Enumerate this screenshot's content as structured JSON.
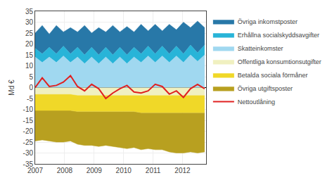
{
  "chart_data": {
    "type": "area",
    "stacked": true,
    "grid": true,
    "legend": "right",
    "ylabel": "Md €",
    "x": [
      2007.0,
      2007.239583,
      2007.479167,
      2007.71875,
      2007.958333,
      2008.197917,
      2008.4375,
      2008.677083,
      2008.916667,
      2009.15625,
      2009.395833,
      2009.635417,
      2009.875,
      2010.114583,
      2010.354167,
      2010.59375,
      2010.833333,
      2011.072917,
      2011.3125,
      2011.552083,
      2011.791667,
      2012.03125,
      2012.270833,
      2012.510417,
      2012.75
    ],
    "xlim": [
      2007.0,
      2012.8
    ],
    "xticks": [
      2007,
      2008,
      2009,
      2010,
      2011,
      2012
    ],
    "ylim": [
      -35,
      35
    ],
    "yticks": [
      -35,
      -30,
      -25,
      -20,
      -15,
      -10,
      -5,
      0,
      5,
      10,
      15,
      20,
      25,
      30,
      35
    ],
    "series": [
      {
        "name": "Skatteinkomster",
        "color": "#a0d8f0",
        "type": "area",
        "values": [
          14.0,
          11.5,
          14.0,
          11.5,
          14.5,
          11.5,
          14.0,
          11.0,
          14.0,
          11.0,
          14.0,
          11.0,
          14.0,
          11.0,
          14.0,
          11.5,
          14.5,
          11.5,
          14.5,
          11.5,
          14.5,
          11.5,
          15.0,
          12.0,
          15.0
        ]
      },
      {
        "name": "Erhållna socialskyddsavgifter",
        "color": "#28b4d8",
        "type": "area",
        "values": [
          4.0,
          4.0,
          4.5,
          4.0,
          4.5,
          4.0,
          4.5,
          4.0,
          4.5,
          4.0,
          4.5,
          4.0,
          4.5,
          4.0,
          4.5,
          4.0,
          4.5,
          4.0,
          4.5,
          4.0,
          4.5,
          4.0,
          4.5,
          4.0,
          4.5
        ]
      },
      {
        "name": "Övriga inkomstposter",
        "color": "#2878a8",
        "type": "area",
        "values": [
          7.0,
          13.0,
          6.0,
          13.0,
          6.5,
          12.0,
          7.0,
          13.5,
          6.5,
          12.5,
          7.0,
          13.5,
          7.0,
          13.0,
          7.0,
          13.5,
          7.0,
          13.5,
          7.0,
          13.5,
          7.5,
          14.5,
          8.0,
          14.5,
          8.0
        ]
      },
      {
        "name": "Offentliga konsumtionsutgifter",
        "color": "#f0f0c0",
        "type": "area",
        "values": [
          -3.0,
          -3.0,
          -3.0,
          -3.0,
          -3.0,
          -3.0,
          -3.5,
          -3.5,
          -3.5,
          -3.5,
          -3.5,
          -3.5,
          -3.5,
          -3.5,
          -3.5,
          -3.5,
          -3.5,
          -3.5,
          -3.5,
          -3.5,
          -3.5,
          -3.5,
          -3.5,
          -3.5,
          -3.5
        ]
      },
      {
        "name": "Betalda sociala förmåner",
        "color": "#f0d828",
        "type": "area",
        "values": [
          -7.5,
          -7.5,
          -7.5,
          -7.5,
          -7.5,
          -7.5,
          -7.5,
          -7.5,
          -7.5,
          -7.5,
          -7.5,
          -7.5,
          -7.5,
          -7.5,
          -7.5,
          -8.0,
          -8.0,
          -8.0,
          -8.0,
          -8.0,
          -8.0,
          -8.0,
          -8.0,
          -8.0,
          -8.0
        ]
      },
      {
        "name": "Övriga utgiftsposter",
        "color": "#b8a020",
        "type": "area",
        "values": [
          -14.0,
          -13.5,
          -14.0,
          -14.5,
          -14.5,
          -14.0,
          -15.0,
          -15.5,
          -15.5,
          -16.0,
          -15.5,
          -16.0,
          -16.5,
          -17.0,
          -16.5,
          -17.0,
          -16.5,
          -17.0,
          -17.0,
          -18.0,
          -18.5,
          -18.5,
          -18.0,
          -18.5,
          -18.0
        ]
      },
      {
        "name": "Nettoutlåning",
        "color": "#e02020",
        "type": "line",
        "values": [
          0.0,
          4.5,
          0.5,
          1.0,
          2.5,
          5.5,
          0.5,
          -1.5,
          1.5,
          -0.5,
          -5.0,
          -2.5,
          -0.5,
          1.0,
          -2.0,
          -2.5,
          -1.5,
          1.5,
          0.5,
          -3.0,
          -1.5,
          -4.5,
          -0.5,
          1.5,
          -0.5
        ]
      }
    ]
  }
}
